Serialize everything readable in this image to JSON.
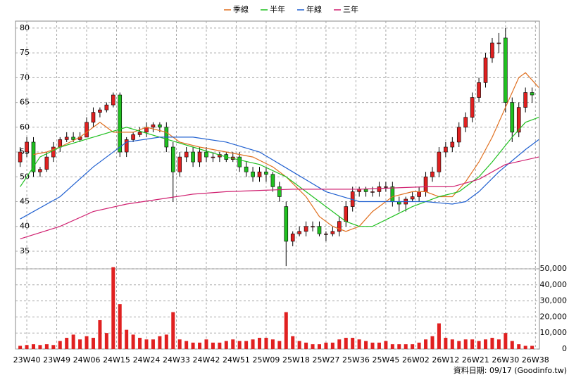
{
  "chart_data": [
    {
      "type": "candlestick",
      "series": [
        {
          "name": "季線",
          "color": "#e07020",
          "x": [
            2,
            6,
            10,
            16,
            22,
            26,
            32,
            36,
            42,
            46,
            52,
            60,
            68,
            74,
            78,
            84,
            88,
            92,
            96,
            100,
            104,
            110,
            116,
            120,
            124,
            128,
            132,
            136,
            140,
            144,
            148,
            150,
            154
          ],
          "values": [
            54.5,
            55,
            56,
            58,
            61,
            59,
            59,
            60,
            59,
            57,
            56,
            55,
            54,
            52,
            50,
            46,
            42,
            40,
            39,
            40,
            43,
            46,
            47,
            47,
            46,
            46,
            49,
            53,
            58,
            64,
            70,
            71,
            68
          ]
        },
        {
          "name": "半年",
          "color": "#20c020",
          "x": [
            -2,
            4,
            10,
            20,
            30,
            40,
            50,
            60,
            70,
            78,
            84,
            90,
            96,
            100,
            104,
            110,
            116,
            124,
            130,
            136,
            140,
            146,
            150,
            154
          ],
          "values": [
            48,
            54,
            56,
            58,
            60,
            58,
            56,
            54,
            52.5,
            50,
            47,
            44,
            41,
            40,
            40,
            42,
            44,
            46,
            47,
            50,
            53,
            58,
            61,
            62
          ]
        },
        {
          "name": "年線",
          "color": "#2060d0",
          "x": [
            -2,
            10,
            20,
            30,
            40,
            50,
            60,
            70,
            80,
            90,
            100,
            110,
            120,
            128,
            132,
            136,
            142,
            150,
            154
          ],
          "values": [
            41.5,
            46,
            52,
            57,
            58,
            58,
            57,
            55,
            51,
            47,
            45,
            45,
            45,
            44.5,
            45,
            47,
            51,
            55.5,
            57.5
          ]
        },
        {
          "name": "三年",
          "color": "#d02070",
          "x": [
            -2,
            10,
            20,
            30,
            40,
            50,
            60,
            80,
            100,
            120,
            128,
            136,
            144,
            154
          ],
          "values": [
            37.5,
            40,
            43,
            44.5,
            45.5,
            46.5,
            47,
            47.5,
            47.5,
            48,
            48,
            49.5,
            52.5,
            54
          ]
        }
      ],
      "candles": {
        "up_color": "#e02020",
        "down_color": "#20c020",
        "x": [
          -2,
          0,
          2,
          4,
          6,
          8,
          10,
          12,
          14,
          16,
          18,
          20,
          22,
          24,
          26,
          28,
          30,
          32,
          34,
          36,
          38,
          40,
          42,
          44,
          46,
          48,
          50,
          52,
          54,
          56,
          58,
          60,
          62,
          64,
          66,
          68,
          70,
          72,
          74,
          76,
          78,
          80,
          82,
          84,
          86,
          88,
          90,
          92,
          94,
          96,
          98,
          100,
          102,
          104,
          106,
          108,
          110,
          112,
          114,
          116,
          118,
          120,
          122,
          124,
          126,
          128,
          130,
          132,
          134,
          136,
          138,
          140,
          142,
          144,
          146,
          148,
          150,
          152
        ],
        "open": [
          53,
          55,
          57,
          51,
          51.5,
          54,
          56,
          57.5,
          58,
          57.5,
          58,
          61,
          63,
          63.5,
          64.5,
          66.5,
          55,
          57.5,
          58.5,
          59,
          60,
          60.5,
          60,
          56,
          51,
          54,
          55,
          53,
          55,
          54,
          54,
          54.5,
          53.5,
          54,
          52,
          51,
          50,
          51,
          50.5,
          48,
          44,
          37,
          38.5,
          39,
          40,
          40,
          38.5,
          38.5,
          39,
          41,
          44,
          47,
          47.5,
          47,
          47,
          48,
          48,
          45,
          44.5,
          45.5,
          46,
          47,
          50,
          51,
          55,
          56,
          57,
          60,
          62,
          66,
          69,
          74,
          77,
          78,
          65,
          59,
          64,
          67
        ],
        "high": [
          56,
          58,
          58,
          52,
          55,
          57,
          58,
          59,
          59,
          59,
          62,
          64,
          64,
          65,
          67,
          67,
          58,
          59,
          60,
          61,
          61,
          61,
          61,
          57,
          55,
          56,
          56,
          56,
          56,
          55,
          55,
          55,
          55,
          55,
          53,
          52,
          52,
          52,
          51,
          49,
          45,
          39,
          40,
          41,
          41,
          41,
          39,
          40,
          42,
          45,
          48,
          48,
          48,
          48,
          49,
          49,
          49,
          46,
          46,
          47,
          48,
          51,
          52,
          56,
          57,
          58,
          61,
          63,
          67,
          70,
          75,
          78,
          79,
          80,
          66,
          65,
          68,
          68
        ],
        "low": [
          52,
          54,
          50,
          50,
          51,
          53,
          55,
          57,
          57,
          57,
          58,
          60,
          62,
          63,
          64,
          54,
          54,
          57,
          58,
          58,
          59,
          59,
          55,
          45,
          50,
          53,
          52,
          52,
          53,
          53,
          53,
          53,
          53,
          51,
          50,
          49,
          49,
          49,
          47,
          45,
          32,
          36,
          38,
          38,
          39,
          38,
          37,
          38,
          38,
          40,
          43,
          46,
          46,
          46,
          46,
          47,
          44,
          43,
          43,
          45,
          45,
          46,
          49,
          50,
          54,
          55,
          56,
          59,
          61,
          65,
          68,
          73,
          75,
          63,
          57,
          58,
          63,
          65
        ],
        "close": [
          55,
          57,
          51,
          51.5,
          54,
          56,
          57.5,
          58,
          57.5,
          58,
          61,
          63,
          63.5,
          64.5,
          66.5,
          55,
          57.5,
          58.5,
          59,
          60,
          60.5,
          60,
          56,
          51,
          54,
          55,
          53,
          55,
          54,
          54,
          54.5,
          53.5,
          54,
          52,
          51,
          50,
          51,
          50.5,
          48,
          46,
          37,
          38.5,
          39,
          40,
          40,
          38.5,
          38.5,
          39,
          41,
          44,
          47,
          47.5,
          47,
          47,
          48,
          48,
          45,
          44.5,
          45.5,
          46,
          47,
          50,
          51,
          55,
          56,
          57,
          60,
          62,
          66,
          69,
          74,
          77,
          77,
          65,
          59,
          64,
          67,
          66.5
        ]
      },
      "xlim": [
        -3.4,
        154.2
      ],
      "ylim": [
        31.45,
        81.4
      ],
      "yticks": [
        35,
        40,
        45,
        50,
        55,
        60,
        65,
        70,
        75,
        80
      ],
      "grid": true
    },
    {
      "type": "bar",
      "color": "#e02020",
      "x": [
        -2,
        0,
        2,
        4,
        6,
        8,
        10,
        12,
        14,
        16,
        18,
        20,
        22,
        24,
        26,
        28,
        30,
        32,
        34,
        36,
        38,
        40,
        42,
        44,
        46,
        48,
        50,
        52,
        54,
        56,
        58,
        60,
        62,
        64,
        66,
        68,
        70,
        72,
        74,
        76,
        78,
        80,
        82,
        84,
        86,
        88,
        90,
        92,
        94,
        96,
        98,
        100,
        102,
        104,
        106,
        108,
        110,
        112,
        114,
        116,
        118,
        120,
        122,
        124,
        126,
        128,
        130,
        132,
        134,
        136,
        138,
        140,
        142,
        144,
        146,
        148,
        150,
        152
      ],
      "values": [
        2000,
        2500,
        3000,
        2500,
        3000,
        2500,
        5000,
        7000,
        9000,
        6000,
        8000,
        7000,
        18000,
        10000,
        51000,
        28000,
        12000,
        9000,
        7000,
        6000,
        6000,
        8000,
        9000,
        23000,
        6000,
        5000,
        4000,
        4000,
        6000,
        4000,
        4000,
        5000,
        6000,
        5000,
        5000,
        6000,
        7000,
        7000,
        6000,
        5000,
        23000,
        8000,
        5000,
        4000,
        3000,
        3000,
        4000,
        4000,
        6000,
        7000,
        7000,
        6000,
        5000,
        4000,
        4000,
        5000,
        3000,
        3000,
        3000,
        3000,
        4000,
        6000,
        8000,
        16000,
        7000,
        6000,
        5000,
        6000,
        6000,
        5000,
        6000,
        7000,
        6000,
        10000,
        5000,
        3000,
        2000,
        2000
      ],
      "xlim": [
        -3.4,
        154.2
      ],
      "ylim": [
        0,
        50000
      ],
      "yticks": [
        0,
        {
          "value": 10000,
          "label": "10,000"
        },
        {
          "value": 20000,
          "label": "20,000"
        },
        {
          "value": 30000,
          "label": "30,000"
        },
        {
          "value": 40000,
          "label": "40,000"
        },
        {
          "value": 50000,
          "label": "50,000"
        }
      ],
      "xticks": [
        {
          "value": 0,
          "label": "23W40"
        },
        {
          "value": 9,
          "label": "23W49"
        },
        {
          "value": 18,
          "label": "24W06"
        },
        {
          "value": 27,
          "label": "24W15"
        },
        {
          "value": 36,
          "label": "24W24"
        },
        {
          "value": 45,
          "label": "24W33"
        },
        {
          "value": 54,
          "label": "24W42"
        },
        {
          "value": 63,
          "label": "24W51"
        },
        {
          "value": 72,
          "label": "25W09"
        },
        {
          "value": 81,
          "label": "25W18"
        },
        {
          "value": 90,
          "label": "25W27"
        },
        {
          "value": 99,
          "label": "25W36"
        },
        {
          "value": 108,
          "label": "25W45"
        },
        {
          "value": 117,
          "label": "26W02"
        },
        {
          "value": 126,
          "label": "26W12"
        },
        {
          "value": 135,
          "label": "26W21"
        },
        {
          "value": 144,
          "label": "26W30"
        },
        {
          "value": 153,
          "label": "26W38"
        }
      ],
      "grid": true,
      "source": "資料日期: 09/17 (Goodinfo.tw)"
    }
  ]
}
